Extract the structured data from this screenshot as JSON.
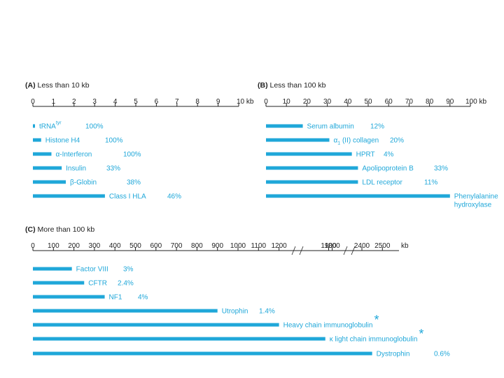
{
  "colors": {
    "bar": "#1fa7d9",
    "label": "#1fa7d9",
    "axis": "#222222",
    "text": "#222222"
  },
  "chart_data": [
    {
      "type": "bar",
      "panel_letter": "(A)",
      "title": "Less than 10 kb",
      "xlim": [
        0,
        10
      ],
      "ticks": [
        "0",
        "1",
        "2",
        "3",
        "4",
        "5",
        "6",
        "7",
        "8",
        "9",
        "10 kb"
      ],
      "categories": [
        "tRNA",
        "Histone H4",
        "α-Interferon",
        "Insulin",
        "β-Globin",
        "Class I HLA"
      ],
      "superscripts": [
        "tyr",
        "",
        "",
        "",
        "",
        ""
      ],
      "values": [
        0.1,
        0.4,
        0.9,
        1.4,
        1.6,
        3.5
      ],
      "coding_percent": [
        "100%",
        "100%",
        "100%",
        "33%",
        "38%",
        "46%"
      ]
    },
    {
      "type": "bar",
      "panel_letter": "(B)",
      "title": "Less than 100 kb",
      "xlim": [
        0,
        100
      ],
      "ticks": [
        "0",
        "10",
        "20",
        "30",
        "40",
        "50",
        "60",
        "70",
        "80",
        "90",
        "100 kb"
      ],
      "categories": [
        "Serum albumin",
        "α1 (II) collagen",
        "HPRT",
        "Apolipoprotein B",
        "LDL receptor",
        "Phenylalanine hydroxylase"
      ],
      "label_lines": [
        [
          "Serum albumin"
        ],
        [
          "α",
          "(II) collagen"
        ],
        [
          "HPRT"
        ],
        [
          "Apolipoprotein B"
        ],
        [
          "LDL receptor"
        ],
        [
          "Phenylalanine",
          "hydroxylase"
        ]
      ],
      "subscripts": [
        "",
        "1",
        "",
        "",
        "",
        ""
      ],
      "values": [
        18,
        31,
        42,
        45,
        45,
        90
      ],
      "coding_percent": [
        "12%",
        "20%",
        "4%",
        "33%",
        "11%",
        ""
      ]
    },
    {
      "type": "bar",
      "panel_letter": "(C)",
      "title": "More than 100 kb",
      "axis_note": "broken axis",
      "ticks": [
        "0",
        "100",
        "200",
        "300",
        "400",
        "500",
        "600",
        "700",
        "800",
        "900",
        "1000",
        "1100",
        "1200",
        "1800",
        "1900",
        "2400",
        "2500",
        "kb"
      ],
      "categories": [
        "Factor VIII",
        "CFTR",
        "NF1",
        "Utrophin",
        "Heavy chain immunoglobulin",
        "κ light chain immunoglobulin",
        "Dystrophin"
      ],
      "values": [
        190,
        250,
        350,
        900,
        1200,
        1850,
        2450
      ],
      "coding_percent": [
        "3%",
        "2.4%",
        "4%",
        "1.4%",
        "",
        "",
        "0.6%"
      ],
      "asterisk": [
        false,
        false,
        false,
        false,
        true,
        true,
        false
      ]
    }
  ]
}
